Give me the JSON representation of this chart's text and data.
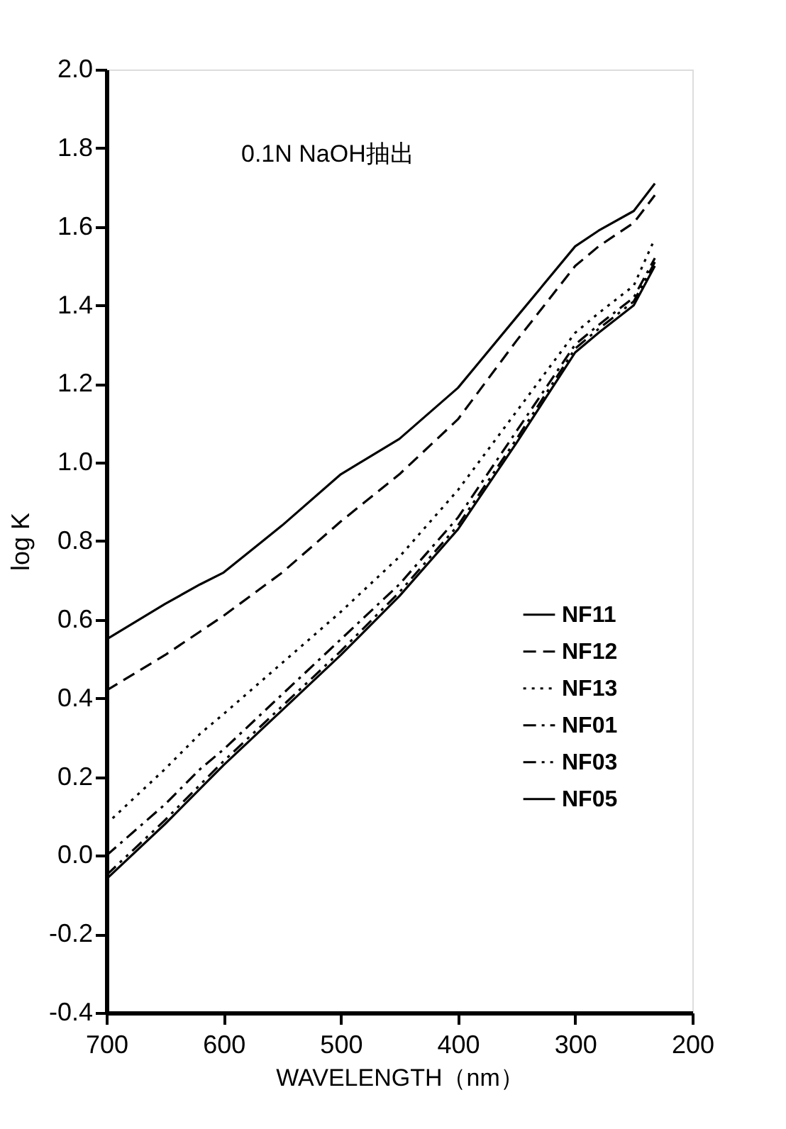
{
  "chart_data": {
    "type": "line",
    "xlabel": "WAVELENGTH（nm）",
    "ylabel": "log K",
    "annotations": [
      "0.1N NaOH抽出"
    ],
    "x": [
      700,
      650,
      620,
      600,
      550,
      500,
      450,
      400,
      350,
      300,
      280,
      250,
      232
    ],
    "series": [
      {
        "name": "NF11",
        "color": "#000000",
        "line_style": "solid",
        "values": [
          0.55,
          0.64,
          0.69,
          0.72,
          0.84,
          0.97,
          1.06,
          1.19,
          1.37,
          1.55,
          1.59,
          1.64,
          1.71
        ]
      },
      {
        "name": "NF12",
        "color": "#000000",
        "line_style": "dashed",
        "values": [
          0.42,
          0.51,
          0.57,
          0.61,
          0.72,
          0.85,
          0.97,
          1.11,
          1.31,
          1.5,
          1.55,
          1.61,
          1.68
        ]
      },
      {
        "name": "NF13",
        "color": "#000000",
        "line_style": "dotted",
        "values": [
          0.08,
          0.22,
          0.31,
          0.36,
          0.49,
          0.62,
          0.76,
          0.93,
          1.13,
          1.33,
          1.38,
          1.45,
          1.57
        ]
      },
      {
        "name": "NF01",
        "color": "#000000",
        "line_style": "dashdot",
        "values": [
          0.0,
          0.13,
          0.22,
          0.27,
          0.41,
          0.55,
          0.69,
          0.86,
          1.08,
          1.3,
          1.35,
          1.42,
          1.52
        ]
      },
      {
        "name": "NF03",
        "color": "#000000",
        "line_style": "dashdotdot",
        "values": [
          -0.05,
          0.09,
          0.18,
          0.24,
          0.38,
          0.52,
          0.67,
          0.84,
          1.06,
          1.29,
          1.34,
          1.41,
          1.51
        ]
      },
      {
        "name": "NF05",
        "color": "#000000",
        "line_style": "solid",
        "values": [
          -0.06,
          0.08,
          0.17,
          0.23,
          0.37,
          0.51,
          0.66,
          0.83,
          1.05,
          1.28,
          1.33,
          1.4,
          1.5
        ]
      }
    ],
    "xlim": [
      700,
      200
    ],
    "xticks": [
      700,
      600,
      500,
      400,
      300,
      200
    ],
    "ylim": [
      -0.4,
      2.0
    ],
    "yticks": [
      {
        "value": -0.4,
        "label": "-0.4"
      },
      {
        "value": -0.2,
        "label": "-0.2"
      },
      {
        "value": 0,
        "label": "0.0"
      },
      {
        "value": 0.2,
        "label": "0.2"
      },
      {
        "value": 0.4,
        "label": "0.4"
      },
      {
        "value": 0.6,
        "label": "0.6"
      },
      {
        "value": 0.8,
        "label": "0.8"
      },
      {
        "value": 1,
        "label": "1.0"
      },
      {
        "value": 1.2,
        "label": "1.2"
      },
      {
        "value": 1.4,
        "label": "1.4"
      },
      {
        "value": 1.6,
        "label": "1.6"
      },
      {
        "value": 1.8,
        "label": "1.8"
      },
      {
        "value": 2,
        "label": "2.0"
      }
    ],
    "grid": false,
    "legend": "right",
    "marker": "none"
  }
}
